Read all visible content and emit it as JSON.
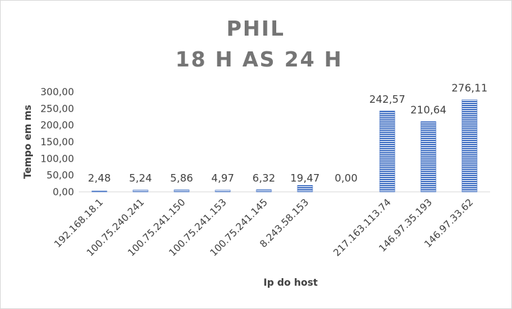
{
  "chart_data": {
    "type": "bar",
    "title_lines": [
      "PHIL",
      "18 H AS 24 H"
    ],
    "xlabel": "Ip do host",
    "ylabel": "Tempo em ms",
    "categories": [
      "192.168.18.1",
      "100.75.240.241",
      "100.75.241.150",
      "100.75.241.153",
      "100.75.241.145",
      "8.243.58.153",
      "",
      "217.163.113.74",
      "146.97.35.193",
      "146.97.33.62"
    ],
    "values": [
      2.48,
      5.24,
      5.86,
      4.97,
      6.32,
      19.47,
      0.0,
      242.57,
      210.64,
      276.11
    ],
    "data_labels": [
      "2,48",
      "5,24",
      "5,86",
      "4,97",
      "6,32",
      "19,47",
      "0,00",
      "242,57",
      "210,64",
      "276,11"
    ],
    "yticks": [
      "0,00",
      "50,00",
      "100,00",
      "150,00",
      "200,00",
      "250,00",
      "300,00"
    ],
    "ylim": [
      0,
      300
    ],
    "grid": false,
    "legend": "none",
    "bar_color": "#4472c4"
  }
}
